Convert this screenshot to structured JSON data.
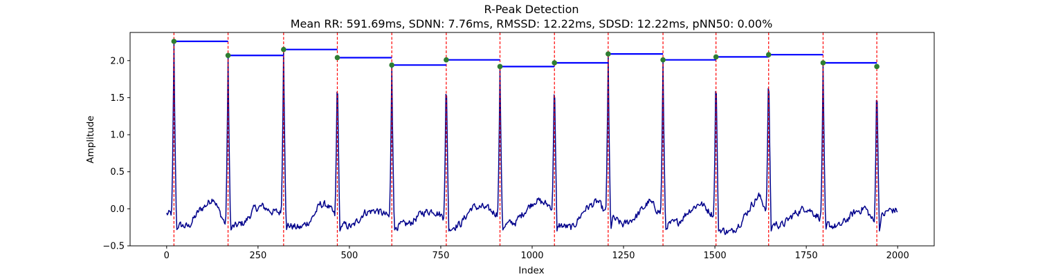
{
  "chart_data": {
    "type": "line",
    "title": "R-Peak Detection",
    "subtitle": "Mean RR: 591.69ms, SDNN: 7.76ms, RMSSD: 12.22ms, SDSD: 12.22ms, pNN50: 0.00%",
    "xlabel": "Index",
    "ylabel": "Amplitude",
    "xlim": [
      -100,
      2100
    ],
    "ylim": [
      -0.5,
      2.38
    ],
    "xticks": [
      0,
      250,
      500,
      750,
      1000,
      1250,
      1500,
      1750,
      2000
    ],
    "yticks": [
      -0.5,
      0.0,
      0.5,
      1.0,
      1.5,
      2.0
    ],
    "grid": false,
    "signal_color": "#00008b",
    "peak_line_color": "#ff0000",
    "rr_line_color": "#0000ff",
    "peak_marker_color": "#2e7d32",
    "peaks": [
      {
        "x": 20,
        "y": 2.26
      },
      {
        "x": 168,
        "y": 2.07
      },
      {
        "x": 320,
        "y": 2.15
      },
      {
        "x": 467,
        "y": 2.04
      },
      {
        "x": 616,
        "y": 1.94
      },
      {
        "x": 765,
        "y": 2.01
      },
      {
        "x": 912,
        "y": 1.92
      },
      {
        "x": 1061,
        "y": 1.97
      },
      {
        "x": 1208,
        "y": 2.09
      },
      {
        "x": 1358,
        "y": 2.01
      },
      {
        "x": 1503,
        "y": 2.05
      },
      {
        "x": 1647,
        "y": 2.08
      },
      {
        "x": 1796,
        "y": 1.97
      },
      {
        "x": 1943,
        "y": 1.92
      }
    ],
    "baseline_trend": [
      [
        0,
        -0.07
      ],
      [
        12,
        -0.07
      ],
      [
        30,
        -0.22
      ],
      [
        60,
        -0.24
      ],
      [
        90,
        -0.02
      ],
      [
        110,
        0.06
      ],
      [
        128,
        0.16
      ],
      [
        145,
        -0.05
      ],
      [
        160,
        -0.2
      ],
      [
        180,
        -0.25
      ],
      [
        215,
        -0.18
      ],
      [
        240,
        0.0
      ],
      [
        262,
        0.03
      ],
      [
        290,
        -0.04
      ],
      [
        312,
        -0.05
      ],
      [
        330,
        -0.22
      ],
      [
        365,
        -0.26
      ],
      [
        395,
        -0.15
      ],
      [
        420,
        0.06
      ],
      [
        440,
        0.05
      ],
      [
        458,
        -0.08
      ],
      [
        478,
        -0.22
      ],
      [
        510,
        -0.24
      ],
      [
        540,
        -0.05
      ],
      [
        575,
        -0.02
      ],
      [
        605,
        -0.1
      ],
      [
        625,
        -0.24
      ],
      [
        665,
        -0.2
      ],
      [
        700,
        -0.05
      ],
      [
        730,
        -0.02
      ],
      [
        755,
        -0.1
      ],
      [
        775,
        -0.26
      ],
      [
        805,
        -0.2
      ],
      [
        835,
        0.02
      ],
      [
        865,
        0.02
      ],
      [
        902,
        -0.06
      ],
      [
        922,
        -0.22
      ],
      [
        955,
        -0.18
      ],
      [
        985,
        0.0
      ],
      [
        1010,
        0.12
      ],
      [
        1050,
        0.04
      ],
      [
        1072,
        -0.22
      ],
      [
        1110,
        -0.26
      ],
      [
        1145,
        0.0
      ],
      [
        1180,
        0.1
      ],
      [
        1200,
        -0.06
      ],
      [
        1218,
        -0.12
      ],
      [
        1250,
        -0.22
      ],
      [
        1285,
        -0.1
      ],
      [
        1320,
        0.1
      ],
      [
        1348,
        -0.04
      ],
      [
        1368,
        -0.22
      ],
      [
        1400,
        -0.18
      ],
      [
        1430,
        -0.02
      ],
      [
        1460,
        0.08
      ],
      [
        1495,
        -0.08
      ],
      [
        1513,
        -0.28
      ],
      [
        1545,
        -0.32
      ],
      [
        1575,
        -0.15
      ],
      [
        1600,
        0.05
      ],
      [
        1620,
        0.18
      ],
      [
        1640,
        0.0
      ],
      [
        1657,
        -0.2
      ],
      [
        1685,
        -0.22
      ],
      [
        1720,
        -0.06
      ],
      [
        1750,
        0.02
      ],
      [
        1788,
        -0.12
      ],
      [
        1806,
        -0.22
      ],
      [
        1840,
        -0.24
      ],
      [
        1880,
        -0.06
      ],
      [
        1910,
        0.02
      ],
      [
        1935,
        -0.18
      ],
      [
        1953,
        -0.12
      ],
      [
        1975,
        -0.02
      ],
      [
        2000,
        -0.02
      ]
    ]
  }
}
